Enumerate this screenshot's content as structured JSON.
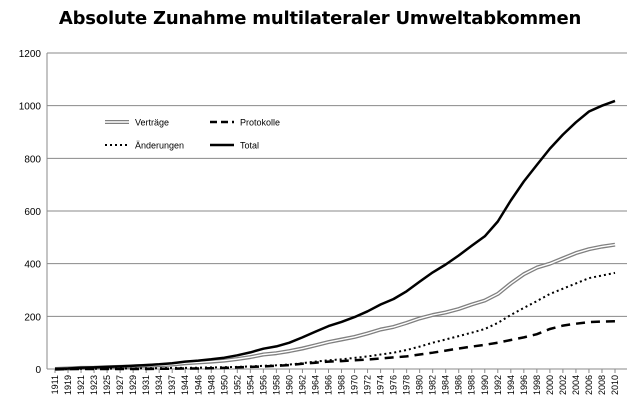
{
  "chart_data": {
    "type": "line",
    "title": "Absolute Zunahme multilateraler Umweltabkommen",
    "xlabel": "",
    "ylabel": "",
    "ylim": [
      0,
      1200
    ],
    "yticks": [
      0,
      200,
      400,
      600,
      800,
      1000,
      1200
    ],
    "grid": "horizontal",
    "legend_placement": "top-left",
    "x_tick_labels": [
      "1911",
      "1919",
      "1921",
      "1923",
      "1925",
      "1927",
      "1929",
      "1931",
      "1934",
      "1937",
      "1944",
      "1946",
      "1948",
      "1950",
      "1952",
      "1954",
      "1956",
      "1958",
      "1960",
      "1962",
      "1964",
      "1966",
      "1968",
      "1970",
      "1972",
      "1974",
      "1976",
      "1978",
      "1980",
      "1982",
      "1984",
      "1986",
      "1988",
      "1990",
      "1992",
      "1994",
      "1996",
      "1998",
      "2000",
      "2002",
      "2004",
      "2006",
      "2008",
      "2010"
    ],
    "series": [
      {
        "name": "Verträge",
        "style": "double",
        "color": "#808080",
        "values": [
          0,
          2,
          4,
          5,
          7,
          8,
          10,
          12,
          14,
          17,
          22,
          25,
          28,
          32,
          38,
          45,
          55,
          60,
          68,
          78,
          90,
          102,
          112,
          122,
          135,
          150,
          160,
          175,
          192,
          205,
          215,
          228,
          245,
          260,
          285,
          325,
          360,
          385,
          400,
          420,
          440,
          455,
          465,
          472
        ]
      },
      {
        "name": "Protokolle",
        "style": "dashed",
        "color": "#000000",
        "values": [
          0,
          0,
          0,
          0,
          0,
          0,
          0,
          0,
          1,
          1,
          2,
          2,
          3,
          4,
          6,
          8,
          10,
          12,
          15,
          20,
          24,
          28,
          30,
          33,
          36,
          40,
          44,
          48,
          55,
          62,
          70,
          78,
          85,
          92,
          100,
          110,
          120,
          132,
          152,
          165,
          172,
          178,
          180,
          181
        ]
      },
      {
        "name": "Änderungen",
        "style": "dotted",
        "color": "#000000",
        "values": [
          0,
          0,
          1,
          1,
          1,
          2,
          2,
          3,
          3,
          4,
          4,
          5,
          6,
          7,
          8,
          10,
          12,
          14,
          17,
          22,
          28,
          33,
          37,
          42,
          48,
          55,
          62,
          72,
          85,
          100,
          112,
          125,
          138,
          152,
          175,
          205,
          232,
          258,
          285,
          305,
          325,
          345,
          355,
          365
        ]
      },
      {
        "name": "Total",
        "style": "solid",
        "color": "#000000",
        "values": [
          0,
          2,
          5,
          6,
          8,
          10,
          12,
          15,
          18,
          22,
          28,
          32,
          37,
          43,
          52,
          63,
          77,
          86,
          100,
          120,
          142,
          163,
          179,
          197,
          219,
          245,
          266,
          295,
          332,
          367,
          397,
          431,
          468,
          504,
          560,
          640,
          712,
          775,
          837,
          890,
          937,
          978,
          1000,
          1018
        ]
      }
    ]
  }
}
